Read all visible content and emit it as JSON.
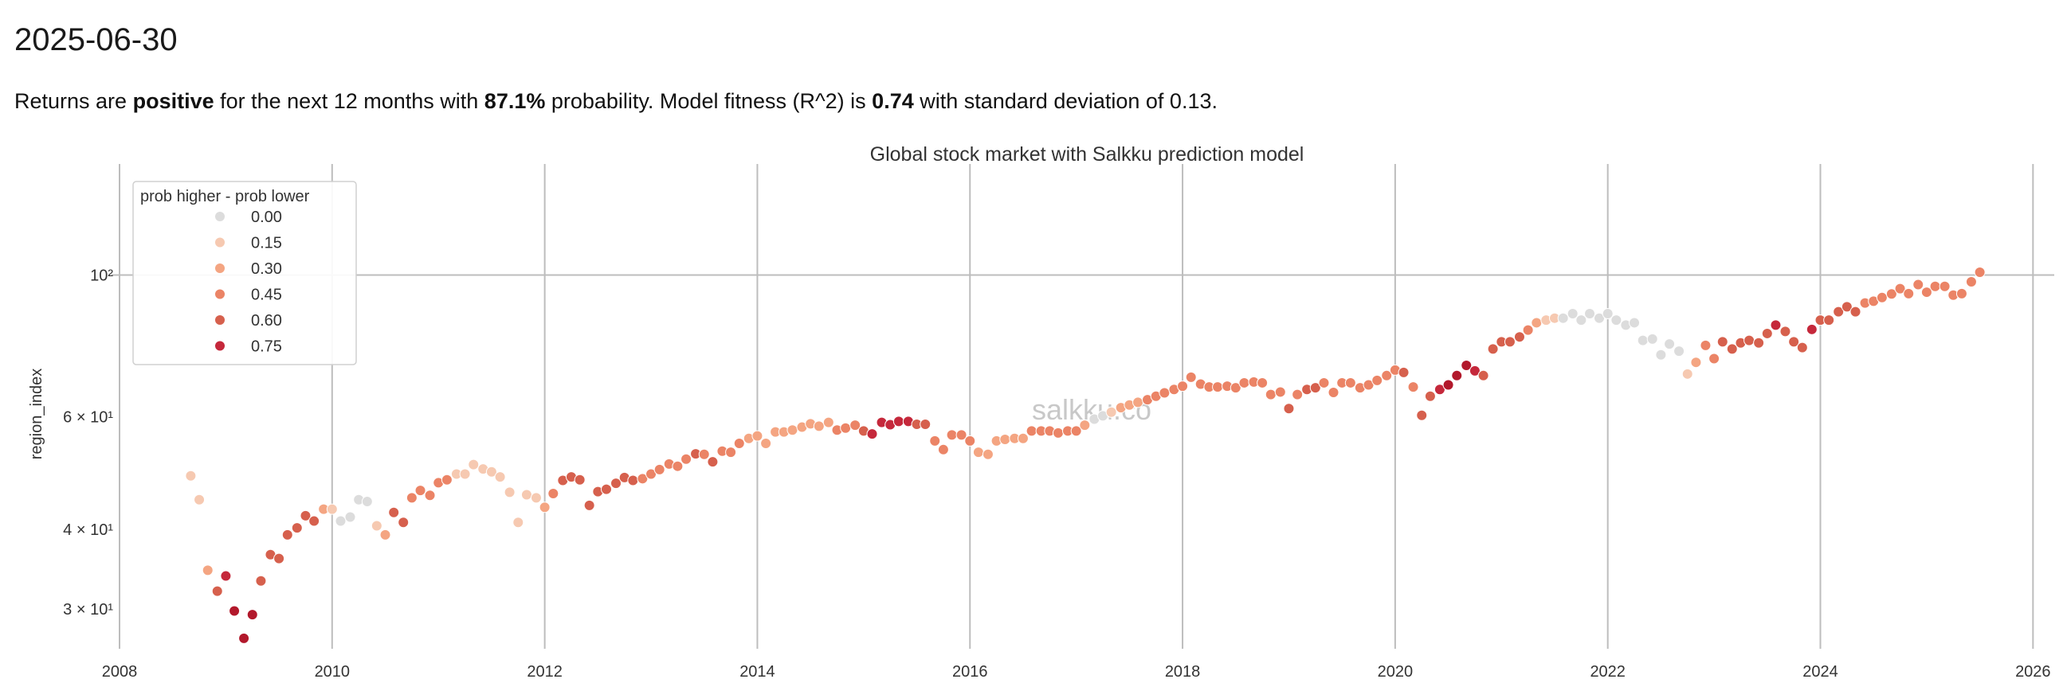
{
  "header": {
    "date": "2025-06-30",
    "summary": {
      "t1": "Returns are ",
      "direction": "positive",
      "t2": " for the next 12 months with ",
      "probability": "87.1%",
      "t3": " probability. Model fitness (R^2) is ",
      "r2": "0.74",
      "t4": " with standard deviation of 0.13."
    }
  },
  "watermark": "salkku.co",
  "chart_data": {
    "type": "scatter",
    "title": "Global stock market with Salkku prediction model",
    "xlabel": "",
    "ylabel": "region_index",
    "xlim": [
      2008,
      2026.2
    ],
    "ylim": [
      26,
      145
    ],
    "yscale": "log",
    "x_ticks": [
      2008,
      2010,
      2012,
      2014,
      2016,
      2018,
      2020,
      2022,
      2024,
      2026
    ],
    "y_ticks": [
      {
        "value": 30,
        "label": "3 × 10¹"
      },
      {
        "value": 40,
        "label": "4 × 10¹"
      },
      {
        "value": 60,
        "label": "6 × 10¹"
      },
      {
        "value": 100,
        "label": "10²"
      }
    ],
    "grid": "major lines only",
    "legend": {
      "title": "prob higher - prob lower",
      "location": "upper-left",
      "entries": [
        {
          "label": "0.00",
          "color": "#dcdcdc"
        },
        {
          "label": "0.15",
          "color": "#f6c9b1"
        },
        {
          "label": "0.30",
          "color": "#f4a582"
        },
        {
          "label": "0.45",
          "color": "#eb8466"
        },
        {
          "label": "0.60",
          "color": "#d6604d"
        },
        {
          "label": "0.75",
          "color": "#c5283b"
        }
      ]
    },
    "points": [
      [
        2008.67,
        48.5,
        0.15
      ],
      [
        2008.75,
        44.5,
        0.15
      ],
      [
        2008.83,
        34.5,
        0.3
      ],
      [
        2008.92,
        32.0,
        0.6
      ],
      [
        2009.0,
        33.8,
        0.75
      ],
      [
        2009.08,
        29.8,
        0.8
      ],
      [
        2009.17,
        27.0,
        0.8
      ],
      [
        2009.25,
        29.4,
        0.8
      ],
      [
        2009.33,
        33.2,
        0.6
      ],
      [
        2009.42,
        36.5,
        0.6
      ],
      [
        2009.5,
        36.0,
        0.6
      ],
      [
        2009.58,
        39.2,
        0.6
      ],
      [
        2009.67,
        40.2,
        0.6
      ],
      [
        2009.75,
        42.0,
        0.6
      ],
      [
        2009.83,
        41.2,
        0.6
      ],
      [
        2009.92,
        43.0,
        0.3
      ],
      [
        2010.0,
        43.0,
        0.15
      ],
      [
        2010.08,
        41.2,
        0.0
      ],
      [
        2010.17,
        41.8,
        0.0
      ],
      [
        2010.25,
        44.5,
        0.0
      ],
      [
        2010.33,
        44.2,
        0.0
      ],
      [
        2010.42,
        40.5,
        0.15
      ],
      [
        2010.5,
        39.2,
        0.3
      ],
      [
        2010.58,
        42.5,
        0.6
      ],
      [
        2010.67,
        41.0,
        0.6
      ],
      [
        2010.75,
        44.8,
        0.45
      ],
      [
        2010.83,
        46.0,
        0.45
      ],
      [
        2010.92,
        45.2,
        0.45
      ],
      [
        2011.0,
        47.3,
        0.45
      ],
      [
        2011.08,
        47.8,
        0.45
      ],
      [
        2011.17,
        48.8,
        0.15
      ],
      [
        2011.25,
        48.8,
        0.15
      ],
      [
        2011.33,
        50.5,
        0.15
      ],
      [
        2011.42,
        49.7,
        0.15
      ],
      [
        2011.5,
        49.2,
        0.15
      ],
      [
        2011.58,
        48.3,
        0.15
      ],
      [
        2011.67,
        45.7,
        0.15
      ],
      [
        2011.75,
        41.0,
        0.15
      ],
      [
        2011.83,
        45.3,
        0.15
      ],
      [
        2011.92,
        44.8,
        0.15
      ],
      [
        2012.0,
        43.3,
        0.3
      ],
      [
        2012.08,
        45.5,
        0.45
      ],
      [
        2012.17,
        47.7,
        0.6
      ],
      [
        2012.25,
        48.3,
        0.6
      ],
      [
        2012.33,
        47.8,
        0.6
      ],
      [
        2012.42,
        43.6,
        0.6
      ],
      [
        2012.5,
        45.8,
        0.6
      ],
      [
        2012.58,
        46.2,
        0.6
      ],
      [
        2012.67,
        47.2,
        0.6
      ],
      [
        2012.75,
        48.2,
        0.6
      ],
      [
        2012.83,
        47.7,
        0.6
      ],
      [
        2012.92,
        48.0,
        0.45
      ],
      [
        2013.0,
        48.8,
        0.45
      ],
      [
        2013.08,
        49.6,
        0.45
      ],
      [
        2013.17,
        50.6,
        0.45
      ],
      [
        2013.25,
        50.2,
        0.45
      ],
      [
        2013.33,
        51.5,
        0.45
      ],
      [
        2013.42,
        52.5,
        0.6
      ],
      [
        2013.5,
        52.4,
        0.45
      ],
      [
        2013.58,
        51.0,
        0.6
      ],
      [
        2013.67,
        53.0,
        0.45
      ],
      [
        2013.75,
        52.8,
        0.45
      ],
      [
        2013.83,
        54.5,
        0.45
      ],
      [
        2013.92,
        55.5,
        0.3
      ],
      [
        2014.0,
        56.0,
        0.3
      ],
      [
        2014.08,
        54.5,
        0.3
      ],
      [
        2014.17,
        56.8,
        0.3
      ],
      [
        2014.25,
        56.8,
        0.3
      ],
      [
        2014.33,
        57.2,
        0.3
      ],
      [
        2014.42,
        57.8,
        0.3
      ],
      [
        2014.5,
        58.5,
        0.3
      ],
      [
        2014.58,
        58.0,
        0.3
      ],
      [
        2014.67,
        58.8,
        0.3
      ],
      [
        2014.75,
        57.2,
        0.45
      ],
      [
        2014.83,
        57.6,
        0.45
      ],
      [
        2014.92,
        58.2,
        0.45
      ],
      [
        2015.0,
        57.0,
        0.6
      ],
      [
        2015.08,
        56.4,
        0.75
      ],
      [
        2015.17,
        58.8,
        0.75
      ],
      [
        2015.25,
        58.3,
        0.75
      ],
      [
        2015.33,
        59.0,
        0.75
      ],
      [
        2015.42,
        59.0,
        0.75
      ],
      [
        2015.5,
        58.4,
        0.6
      ],
      [
        2015.58,
        58.4,
        0.6
      ],
      [
        2015.67,
        55.0,
        0.45
      ],
      [
        2015.75,
        53.3,
        0.45
      ],
      [
        2015.83,
        56.2,
        0.45
      ],
      [
        2015.92,
        56.2,
        0.45
      ],
      [
        2016.0,
        55.0,
        0.45
      ],
      [
        2016.08,
        52.8,
        0.3
      ],
      [
        2016.17,
        52.4,
        0.3
      ],
      [
        2016.25,
        55.0,
        0.3
      ],
      [
        2016.33,
        55.3,
        0.3
      ],
      [
        2016.42,
        55.5,
        0.3
      ],
      [
        2016.5,
        55.5,
        0.3
      ],
      [
        2016.58,
        57.0,
        0.45
      ],
      [
        2016.67,
        57.0,
        0.45
      ],
      [
        2016.75,
        57.0,
        0.45
      ],
      [
        2016.83,
        56.6,
        0.45
      ],
      [
        2016.92,
        57.0,
        0.45
      ],
      [
        2017.0,
        57.0,
        0.45
      ],
      [
        2017.08,
        58.2,
        0.3
      ],
      [
        2017.17,
        59.5,
        0.0
      ],
      [
        2017.25,
        60.2,
        0.0
      ],
      [
        2017.33,
        61.0,
        0.15
      ],
      [
        2017.42,
        62.0,
        0.3
      ],
      [
        2017.5,
        62.6,
        0.3
      ],
      [
        2017.58,
        63.2,
        0.3
      ],
      [
        2017.67,
        63.8,
        0.45
      ],
      [
        2017.75,
        64.6,
        0.45
      ],
      [
        2017.83,
        65.4,
        0.45
      ],
      [
        2017.92,
        66.2,
        0.45
      ],
      [
        2018.0,
        67.0,
        0.45
      ],
      [
        2018.08,
        69.2,
        0.45
      ],
      [
        2018.17,
        67.5,
        0.45
      ],
      [
        2018.25,
        66.8,
        0.45
      ],
      [
        2018.33,
        66.8,
        0.45
      ],
      [
        2018.42,
        67.0,
        0.45
      ],
      [
        2018.5,
        66.6,
        0.45
      ],
      [
        2018.58,
        67.8,
        0.45
      ],
      [
        2018.67,
        68.0,
        0.45
      ],
      [
        2018.75,
        67.8,
        0.45
      ],
      [
        2018.83,
        65.0,
        0.45
      ],
      [
        2018.92,
        65.6,
        0.45
      ],
      [
        2019.0,
        61.8,
        0.6
      ],
      [
        2019.08,
        65.0,
        0.45
      ],
      [
        2019.17,
        66.2,
        0.6
      ],
      [
        2019.25,
        66.6,
        0.6
      ],
      [
        2019.33,
        67.8,
        0.45
      ],
      [
        2019.42,
        65.5,
        0.45
      ],
      [
        2019.5,
        67.8,
        0.45
      ],
      [
        2019.58,
        67.8,
        0.45
      ],
      [
        2019.67,
        66.6,
        0.45
      ],
      [
        2019.75,
        67.3,
        0.45
      ],
      [
        2019.83,
        68.4,
        0.45
      ],
      [
        2019.92,
        69.6,
        0.45
      ],
      [
        2020.0,
        71.0,
        0.45
      ],
      [
        2020.08,
        70.4,
        0.6
      ],
      [
        2020.17,
        66.8,
        0.45
      ],
      [
        2020.25,
        60.3,
        0.6
      ],
      [
        2020.33,
        64.6,
        0.6
      ],
      [
        2020.42,
        66.2,
        0.75
      ],
      [
        2020.5,
        67.3,
        0.8
      ],
      [
        2020.58,
        69.6,
        0.8
      ],
      [
        2020.67,
        72.2,
        0.8
      ],
      [
        2020.75,
        70.8,
        0.75
      ],
      [
        2020.83,
        69.6,
        0.6
      ],
      [
        2020.92,
        76.6,
        0.6
      ],
      [
        2021.0,
        78.6,
        0.6
      ],
      [
        2021.08,
        78.6,
        0.6
      ],
      [
        2021.17,
        80.0,
        0.6
      ],
      [
        2021.25,
        82.0,
        0.45
      ],
      [
        2021.33,
        84.2,
        0.3
      ],
      [
        2021.42,
        85.0,
        0.15
      ],
      [
        2021.5,
        85.6,
        0.15
      ],
      [
        2021.58,
        85.6,
        0.0
      ],
      [
        2021.67,
        87.0,
        0.0
      ],
      [
        2021.75,
        85.0,
        0.0
      ],
      [
        2021.83,
        87.0,
        0.0
      ],
      [
        2021.92,
        85.6,
        0.0
      ],
      [
        2022.0,
        87.0,
        0.0
      ],
      [
        2022.08,
        85.0,
        0.0
      ],
      [
        2022.17,
        83.5,
        0.0
      ],
      [
        2022.25,
        84.2,
        0.0
      ],
      [
        2022.33,
        79.0,
        0.0
      ],
      [
        2022.42,
        79.4,
        0.0
      ],
      [
        2022.5,
        75.0,
        0.0
      ],
      [
        2022.58,
        78.0,
        0.0
      ],
      [
        2022.67,
        76.0,
        0.0
      ],
      [
        2022.75,
        70.0,
        0.15
      ],
      [
        2022.83,
        73.0,
        0.3
      ],
      [
        2022.92,
        77.6,
        0.45
      ],
      [
        2023.0,
        74.0,
        0.45
      ],
      [
        2023.08,
        78.6,
        0.6
      ],
      [
        2023.17,
        76.6,
        0.6
      ],
      [
        2023.25,
        78.3,
        0.6
      ],
      [
        2023.33,
        79.0,
        0.6
      ],
      [
        2023.42,
        78.3,
        0.6
      ],
      [
        2023.5,
        81.0,
        0.6
      ],
      [
        2023.58,
        83.5,
        0.75
      ],
      [
        2023.67,
        81.6,
        0.6
      ],
      [
        2023.75,
        78.6,
        0.6
      ],
      [
        2023.83,
        77.0,
        0.6
      ],
      [
        2023.92,
        82.2,
        0.75
      ],
      [
        2024.0,
        85.0,
        0.6
      ],
      [
        2024.08,
        85.0,
        0.6
      ],
      [
        2024.17,
        87.6,
        0.6
      ],
      [
        2024.25,
        89.2,
        0.6
      ],
      [
        2024.33,
        87.6,
        0.6
      ],
      [
        2024.42,
        90.4,
        0.45
      ],
      [
        2024.5,
        91.0,
        0.45
      ],
      [
        2024.58,
        92.2,
        0.45
      ],
      [
        2024.67,
        93.4,
        0.45
      ],
      [
        2024.75,
        95.2,
        0.45
      ],
      [
        2024.83,
        93.5,
        0.45
      ],
      [
        2024.92,
        96.6,
        0.45
      ],
      [
        2025.0,
        94.0,
        0.45
      ],
      [
        2025.08,
        96.0,
        0.45
      ],
      [
        2025.17,
        96.0,
        0.45
      ],
      [
        2025.25,
        93.0,
        0.45
      ],
      [
        2025.33,
        93.5,
        0.45
      ],
      [
        2025.42,
        97.6,
        0.45
      ],
      [
        2025.5,
        101.0,
        0.45
      ]
    ]
  }
}
